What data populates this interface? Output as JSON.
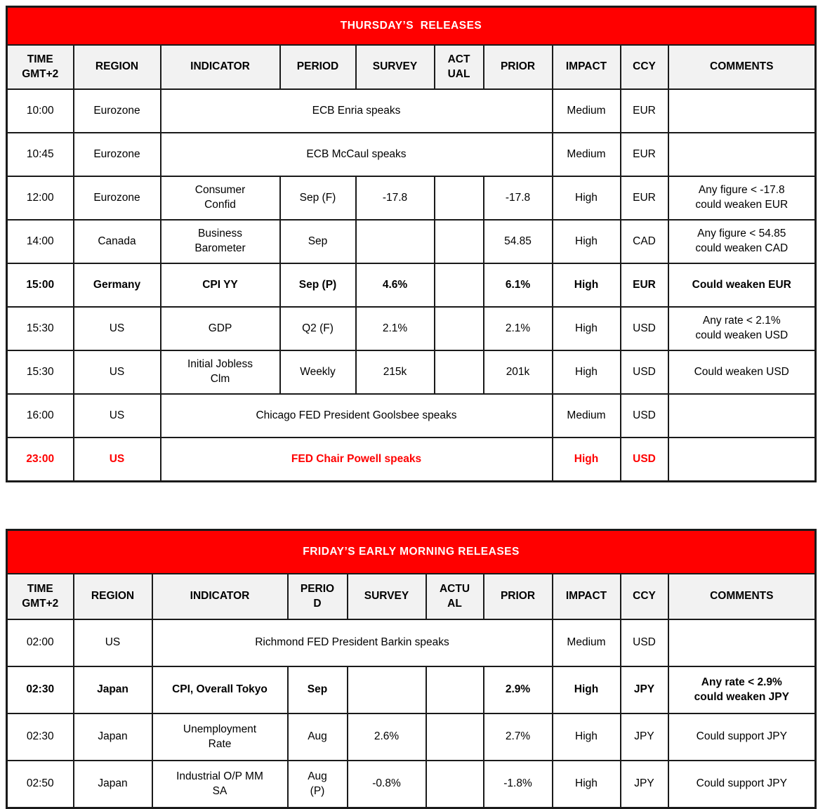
{
  "colors": {
    "title_bg": "#FF0000",
    "title_text": "#FFFFFF",
    "header_bg": "#F2F2F2",
    "border": "#1a1a1a",
    "body_text": "#000000",
    "highlight_text": "#FF0000"
  },
  "tables": [
    {
      "title": "THURSDAY’S  RELEASES",
      "headers": [
        "TIME\nGMT+2",
        "REGION",
        "INDICATOR",
        "PERIOD",
        "SURVEY",
        "ACT\nUAL",
        "PRIOR",
        "IMPACT",
        "CCY",
        "COMMENTS"
      ],
      "rows": [
        {
          "time": "10:00",
          "region": "Eurozone",
          "merged": "ECB Enria speaks",
          "impact": "Medium",
          "ccy": "EUR",
          "comments": "",
          "bold": false,
          "highlight": false
        },
        {
          "time": "10:45",
          "region": "Eurozone",
          "merged": "ECB McCaul speaks",
          "impact": "Medium",
          "ccy": "EUR",
          "comments": "",
          "bold": false,
          "highlight": false
        },
        {
          "time": "12:00",
          "region": "Eurozone",
          "indicator": "Consumer\nConfid",
          "period": "Sep (F)",
          "survey": "-17.8",
          "actual": "",
          "prior": "-17.8",
          "impact": "High",
          "ccy": "EUR",
          "comments": "Any figure < -17.8\ncould weaken EUR",
          "bold": false,
          "highlight": false
        },
        {
          "time": "14:00",
          "region": "Canada",
          "indicator": "Business\nBarometer",
          "period": "Sep",
          "survey": "",
          "actual": "",
          "prior": "54.85",
          "impact": "High",
          "ccy": "CAD",
          "comments": "Any figure < 54.85\ncould weaken CAD",
          "bold": false,
          "highlight": false
        },
        {
          "time": "15:00",
          "region": "Germany",
          "indicator": "CPI YY",
          "period": "Sep (P)",
          "survey": "4.6%",
          "actual": "",
          "prior": "6.1%",
          "impact": "High",
          "ccy": "EUR",
          "comments": "Could weaken EUR",
          "bold": true,
          "highlight": false
        },
        {
          "time": "15:30",
          "region": "US",
          "indicator": "GDP",
          "period": "Q2 (F)",
          "survey": "2.1%",
          "actual": "",
          "prior": "2.1%",
          "impact": "High",
          "ccy": "USD",
          "comments": "Any rate < 2.1%\ncould weaken USD",
          "bold": false,
          "highlight": false
        },
        {
          "time": "15:30",
          "region": "US",
          "indicator": "Initial Jobless\nClm",
          "period": "Weekly",
          "survey": "215k",
          "actual": "",
          "prior": "201k",
          "impact": "High",
          "ccy": "USD",
          "comments": "Could weaken USD",
          "bold": false,
          "highlight": false
        },
        {
          "time": "16:00",
          "region": "US",
          "merged": "Chicago FED President Goolsbee speaks",
          "impact": "Medium",
          "ccy": "USD",
          "comments": "",
          "bold": false,
          "highlight": false
        },
        {
          "time": "23:00",
          "region": "US",
          "merged": "FED Chair Powell speaks",
          "impact": "High",
          "ccy": "USD",
          "comments": "",
          "bold": true,
          "highlight": true
        }
      ]
    },
    {
      "title": "FRIDAY’S EARLY MORNING RELEASES",
      "headers": [
        "TIME\nGMT+2",
        "REGION",
        "INDICATOR",
        "PERIO\nD",
        "SURVEY",
        "ACTU\nAL",
        "PRIOR",
        "IMPACT",
        "CCY",
        "COMMENTS"
      ],
      "rows": [
        {
          "time": "02:00",
          "region": "US",
          "merged": "Richmond FED President Barkin speaks",
          "impact": "Medium",
          "ccy": "USD",
          "comments": "",
          "bold": false,
          "highlight": false
        },
        {
          "time": "02:30",
          "region": "Japan",
          "indicator": "CPI, Overall Tokyo",
          "period": "Sep",
          "survey": "",
          "actual": "",
          "prior": "2.9%",
          "impact": "High",
          "ccy": "JPY",
          "comments": "Any rate < 2.9%\ncould weaken JPY",
          "bold": true,
          "highlight": false
        },
        {
          "time": "02:30",
          "region": "Japan",
          "indicator": "Unemployment\nRate",
          "period": "Aug",
          "survey": "2.6%",
          "actual": "",
          "prior": "2.7%",
          "impact": "High",
          "ccy": "JPY",
          "comments": "Could support JPY",
          "bold": false,
          "highlight": false
        },
        {
          "time": "02:50",
          "region": "Japan",
          "indicator": "Industrial O/P MM\nSA",
          "period": "Aug\n(P)",
          "survey": "-0.8%",
          "actual": "",
          "prior": "-1.8%",
          "impact": "High",
          "ccy": "JPY",
          "comments": "Could support JPY",
          "bold": false,
          "highlight": false
        }
      ]
    }
  ]
}
